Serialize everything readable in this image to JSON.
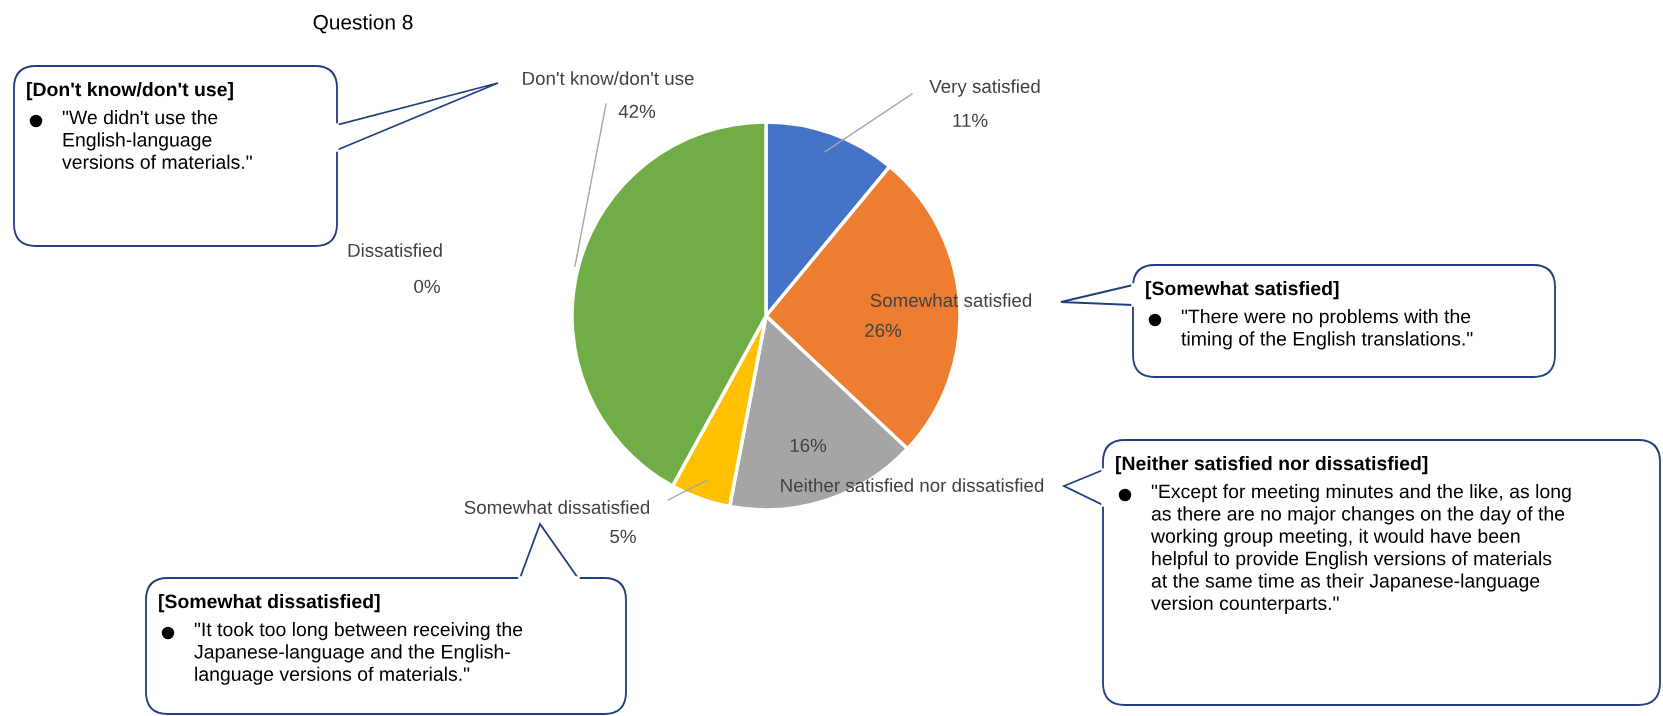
{
  "chart_data": {
    "type": "pie",
    "title": "Question 8",
    "categories": [
      "Very satisfied",
      "Somewhat satisfied",
      "Neither satisfied nor dissatisfied",
      "Somewhat dissatisfied",
      "Dissatisfied",
      "Don't know/don't use"
    ],
    "values": [
      11,
      26,
      16,
      5,
      0,
      42
    ],
    "value_labels": [
      "11%",
      "26%",
      "16%",
      "5%",
      "0%",
      "42%"
    ],
    "colors": [
      "#4472c4",
      "#ed7d31",
      "#a5a5a5",
      "#ffc000",
      "#5b9bd5",
      "#70ad47"
    ],
    "legend": false,
    "annotations": [
      "[Don't know/don't use]",
      "\"We didn't use the\nEnglish-language\nversions of materials.\"",
      "[Somewhat satisfied]",
      "\"There were no problems with the\ntiming of the English translations.\"",
      "[Neither satisfied nor dissatisfied]",
      "\"Except for meeting minutes and the like, as long\nas there are no major changes on the day of the\nworking group meeting, it would have been\nhelpful to provide English versions of materials\nat the same time as their Japanese-language\nversion counterparts.\"",
      "[Somewhat dissatisfied]",
      "\"It took too long between receiving the\nJapanese-language and the English-\nlanguage versions of materials.\""
    ]
  }
}
